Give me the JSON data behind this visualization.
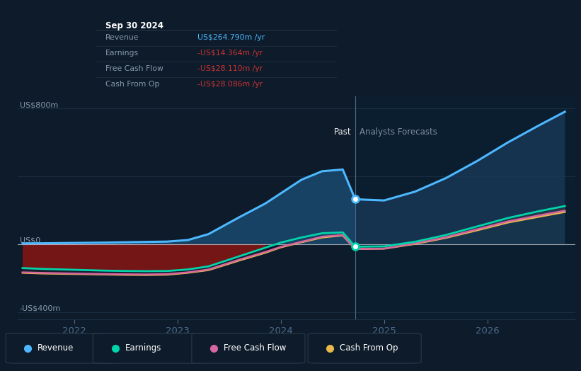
{
  "bg_color": "#0d1b2a",
  "plot_bg_color": "#0d1b2a",
  "ylabel_top": "US$800m",
  "ylabel_bottom": "-US$400m",
  "ylabel_zero": "US$0",
  "x_ticks": [
    2022,
    2023,
    2024,
    2025,
    2026
  ],
  "divider_x": 2024.72,
  "past_label": "Past",
  "forecast_label": "Analysts Forecasts",
  "tooltip_title": "Sep 30 2024",
  "tooltip_rows": [
    {
      "label": "Revenue",
      "value": "US$264.790m",
      "color": "#4db8ff"
    },
    {
      "label": "Earnings",
      "value": "-US$14.364m",
      "color": "#cc3333"
    },
    {
      "label": "Free Cash Flow",
      "value": "-US$28.110m",
      "color": "#cc3333"
    },
    {
      "label": "Cash From Op",
      "value": "-US$28.086m",
      "color": "#cc3333"
    }
  ],
  "revenue": {
    "x": [
      2021.5,
      2021.7,
      2022.0,
      2022.3,
      2022.5,
      2022.7,
      2022.9,
      2023.1,
      2023.3,
      2023.6,
      2023.85,
      2024.0,
      2024.2,
      2024.4,
      2024.6,
      2024.72,
      2025.0,
      2025.3,
      2025.6,
      2025.9,
      2026.2,
      2026.5,
      2026.75
    ],
    "y": [
      5,
      6,
      8,
      10,
      12,
      14,
      16,
      25,
      60,
      160,
      240,
      300,
      380,
      430,
      440,
      265,
      258,
      310,
      390,
      490,
      600,
      700,
      780
    ],
    "color": "#4db8ff",
    "lw": 2.2
  },
  "earnings": {
    "x": [
      2021.5,
      2021.7,
      2022.0,
      2022.3,
      2022.5,
      2022.7,
      2022.9,
      2023.1,
      2023.3,
      2023.6,
      2023.85,
      2024.0,
      2024.2,
      2024.4,
      2024.6,
      2024.72,
      2025.0,
      2025.3,
      2025.6,
      2025.9,
      2026.2,
      2026.5,
      2026.75
    ],
    "y": [
      -140,
      -145,
      -150,
      -155,
      -157,
      -158,
      -157,
      -148,
      -130,
      -70,
      -20,
      10,
      40,
      65,
      70,
      -14,
      -12,
      15,
      55,
      105,
      155,
      195,
      225
    ],
    "color": "#00d4aa",
    "lw": 2.0
  },
  "fcf": {
    "x": [
      2021.5,
      2021.7,
      2022.0,
      2022.3,
      2022.5,
      2022.7,
      2022.9,
      2023.1,
      2023.3,
      2023.6,
      2023.85,
      2024.0,
      2024.2,
      2024.4,
      2024.6,
      2024.72,
      2025.0,
      2025.3,
      2025.6,
      2025.9,
      2026.2,
      2026.5,
      2026.75
    ],
    "y": [
      -165,
      -168,
      -172,
      -175,
      -176,
      -177,
      -175,
      -165,
      -148,
      -90,
      -45,
      -15,
      15,
      45,
      55,
      -28,
      -25,
      5,
      42,
      88,
      135,
      170,
      198
    ],
    "color": "#d466a0",
    "lw": 1.8
  },
  "cashfromop": {
    "x": [
      2021.5,
      2021.7,
      2022.0,
      2022.3,
      2022.5,
      2022.7,
      2022.9,
      2023.1,
      2023.3,
      2023.6,
      2023.85,
      2024.0,
      2024.2,
      2024.4,
      2024.6,
      2024.72,
      2025.0,
      2025.3,
      2025.6,
      2025.9,
      2026.2,
      2026.5,
      2026.75
    ],
    "y": [
      -168,
      -172,
      -175,
      -178,
      -180,
      -181,
      -179,
      -168,
      -152,
      -95,
      -50,
      -18,
      12,
      40,
      52,
      -28,
      -26,
      2,
      38,
      82,
      128,
      162,
      190
    ],
    "color": "#e8b84b",
    "lw": 1.8
  },
  "ylim": [
    -440,
    870
  ],
  "xlim": [
    2021.45,
    2026.85
  ],
  "legend_items": [
    {
      "label": "Revenue",
      "color": "#4db8ff"
    },
    {
      "label": "Earnings",
      "color": "#00d4aa"
    },
    {
      "label": "Free Cash Flow",
      "color": "#d466a0"
    },
    {
      "label": "Cash From Op",
      "color": "#e8b84b"
    }
  ]
}
